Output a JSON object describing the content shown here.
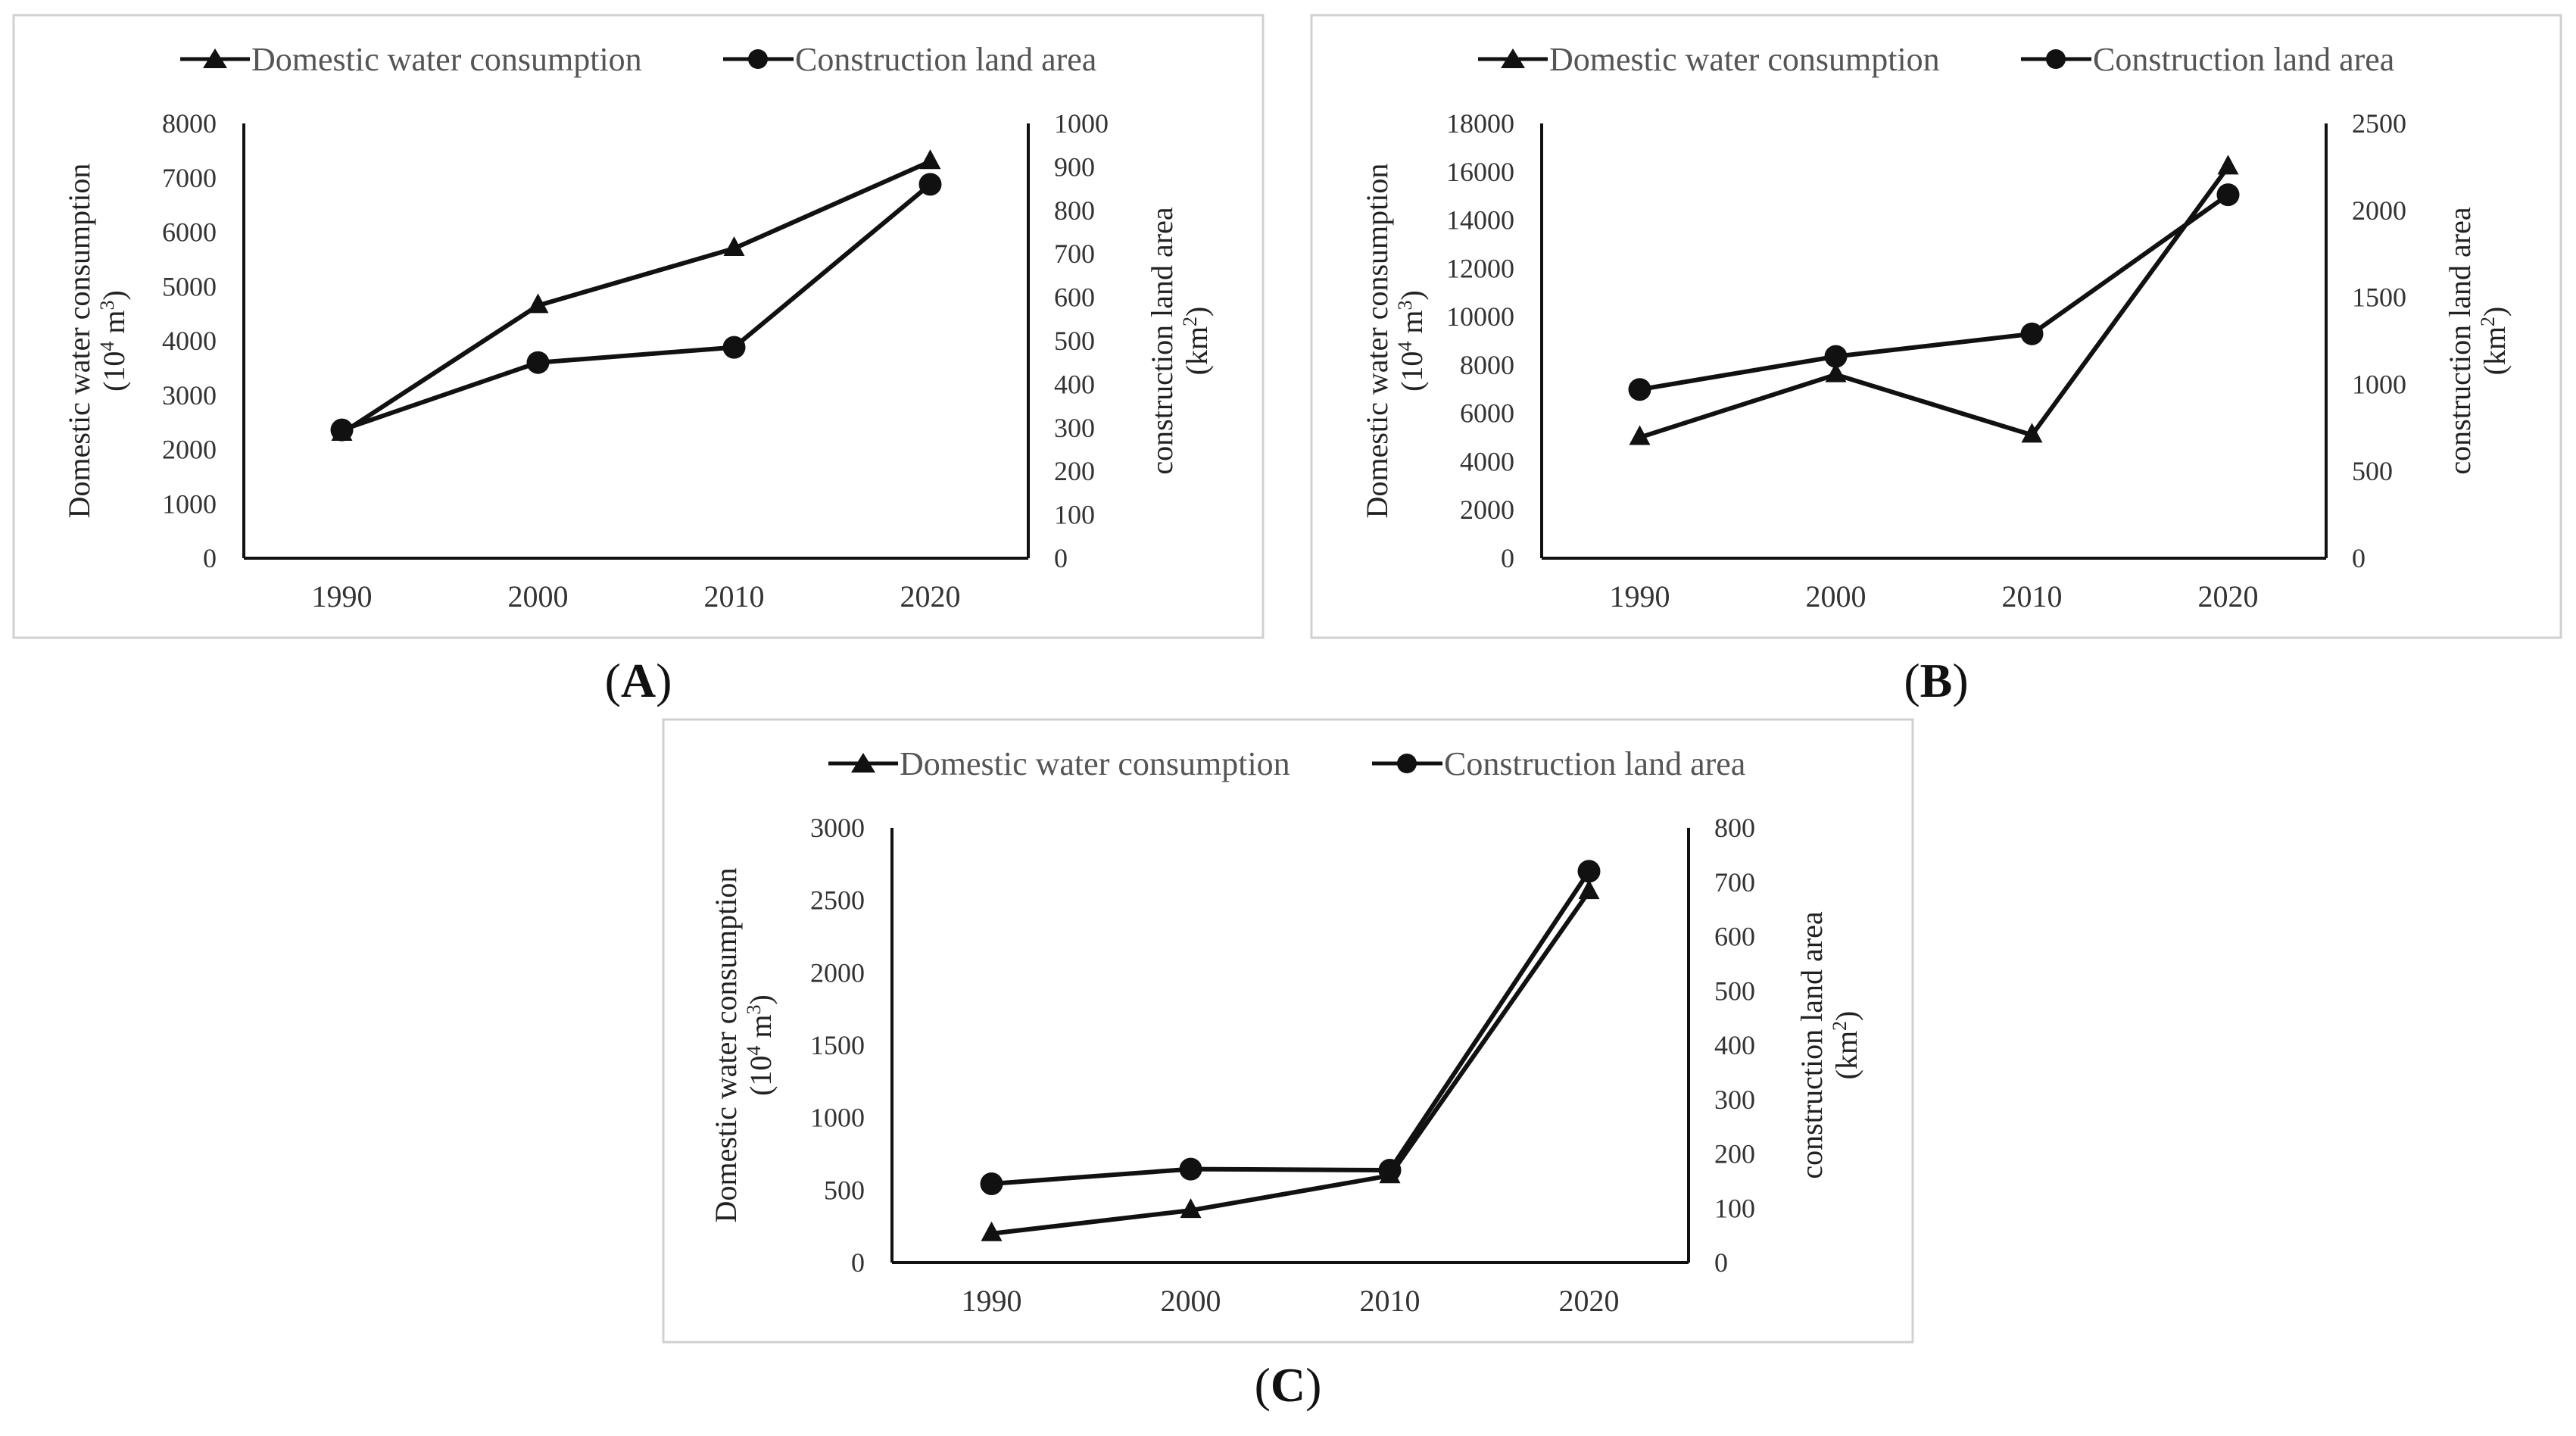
{
  "legend": {
    "water": "Domestic water consumption",
    "land": "Construction land area"
  },
  "axis_labels": {
    "left_line1": "Domestic water consumption",
    "left_unit_base": "(10",
    "left_unit_exp": "4",
    "left_unit_mid": " m",
    "left_unit_exp2": "3",
    "left_unit_end": ")",
    "right_line1": "construction land area",
    "right_unit_base": "(km",
    "right_unit_exp": "2",
    "right_unit_end": ")"
  },
  "chart_data": [
    {
      "type": "line",
      "panel": "A",
      "categories": [
        "1990",
        "2000",
        "2010",
        "2020"
      ],
      "series": [
        {
          "name": "Domestic water consumption",
          "axis": "left",
          "marker": "triangle",
          "values": [
            2300,
            4650,
            5700,
            7300
          ]
        },
        {
          "name": "Construction land area",
          "axis": "right",
          "marker": "circle",
          "values": [
            295,
            450,
            485,
            860
          ]
        }
      ],
      "ylim_left": [
        0,
        8000
      ],
      "yticks_left": [
        0,
        1000,
        2000,
        3000,
        4000,
        5000,
        6000,
        7000,
        8000
      ],
      "ylim_right": [
        0,
        1000
      ],
      "yticks_right": [
        0,
        100,
        200,
        300,
        400,
        500,
        600,
        700,
        800,
        900,
        1000
      ],
      "ylabel_left": "Domestic water consumption (10^4 m^3)",
      "ylabel_right": "construction land area (km^2)"
    },
    {
      "type": "line",
      "panel": "B",
      "categories": [
        "1990",
        "2000",
        "2010",
        "2020"
      ],
      "series": [
        {
          "name": "Domestic water consumption",
          "axis": "left",
          "marker": "triangle",
          "values": [
            5000,
            7600,
            5100,
            16200
          ]
        },
        {
          "name": "Construction land area",
          "axis": "right",
          "marker": "circle",
          "values": [
            970,
            1160,
            1290,
            2090
          ]
        }
      ],
      "ylim_left": [
        0,
        18000
      ],
      "yticks_left": [
        0,
        2000,
        4000,
        6000,
        8000,
        10000,
        12000,
        14000,
        16000,
        18000
      ],
      "ylim_right": [
        0,
        2500
      ],
      "yticks_right": [
        0,
        500,
        1000,
        1500,
        2000,
        2500
      ],
      "ylabel_left": "Domestic water consumption (10^4 m^3)",
      "ylabel_right": "construction land area (km^2)"
    },
    {
      "type": "line",
      "panel": "C",
      "categories": [
        "1990",
        "2000",
        "2010",
        "2020"
      ],
      "series": [
        {
          "name": "Domestic water consumption",
          "axis": "left",
          "marker": "triangle",
          "values": [
            200,
            360,
            600,
            2560
          ]
        },
        {
          "name": "Construction land area",
          "axis": "right",
          "marker": "circle",
          "values": [
            145,
            172,
            170,
            720
          ]
        }
      ],
      "ylim_left": [
        0,
        3000
      ],
      "yticks_left": [
        0,
        500,
        1000,
        1500,
        2000,
        2500,
        3000
      ],
      "ylim_right": [
        0,
        800
      ],
      "yticks_right": [
        0,
        100,
        200,
        300,
        400,
        500,
        600,
        700,
        800
      ],
      "ylabel_left": "Domestic water consumption (10^4 m^3)",
      "ylabel_right": "construction land area (km^2)"
    }
  ]
}
